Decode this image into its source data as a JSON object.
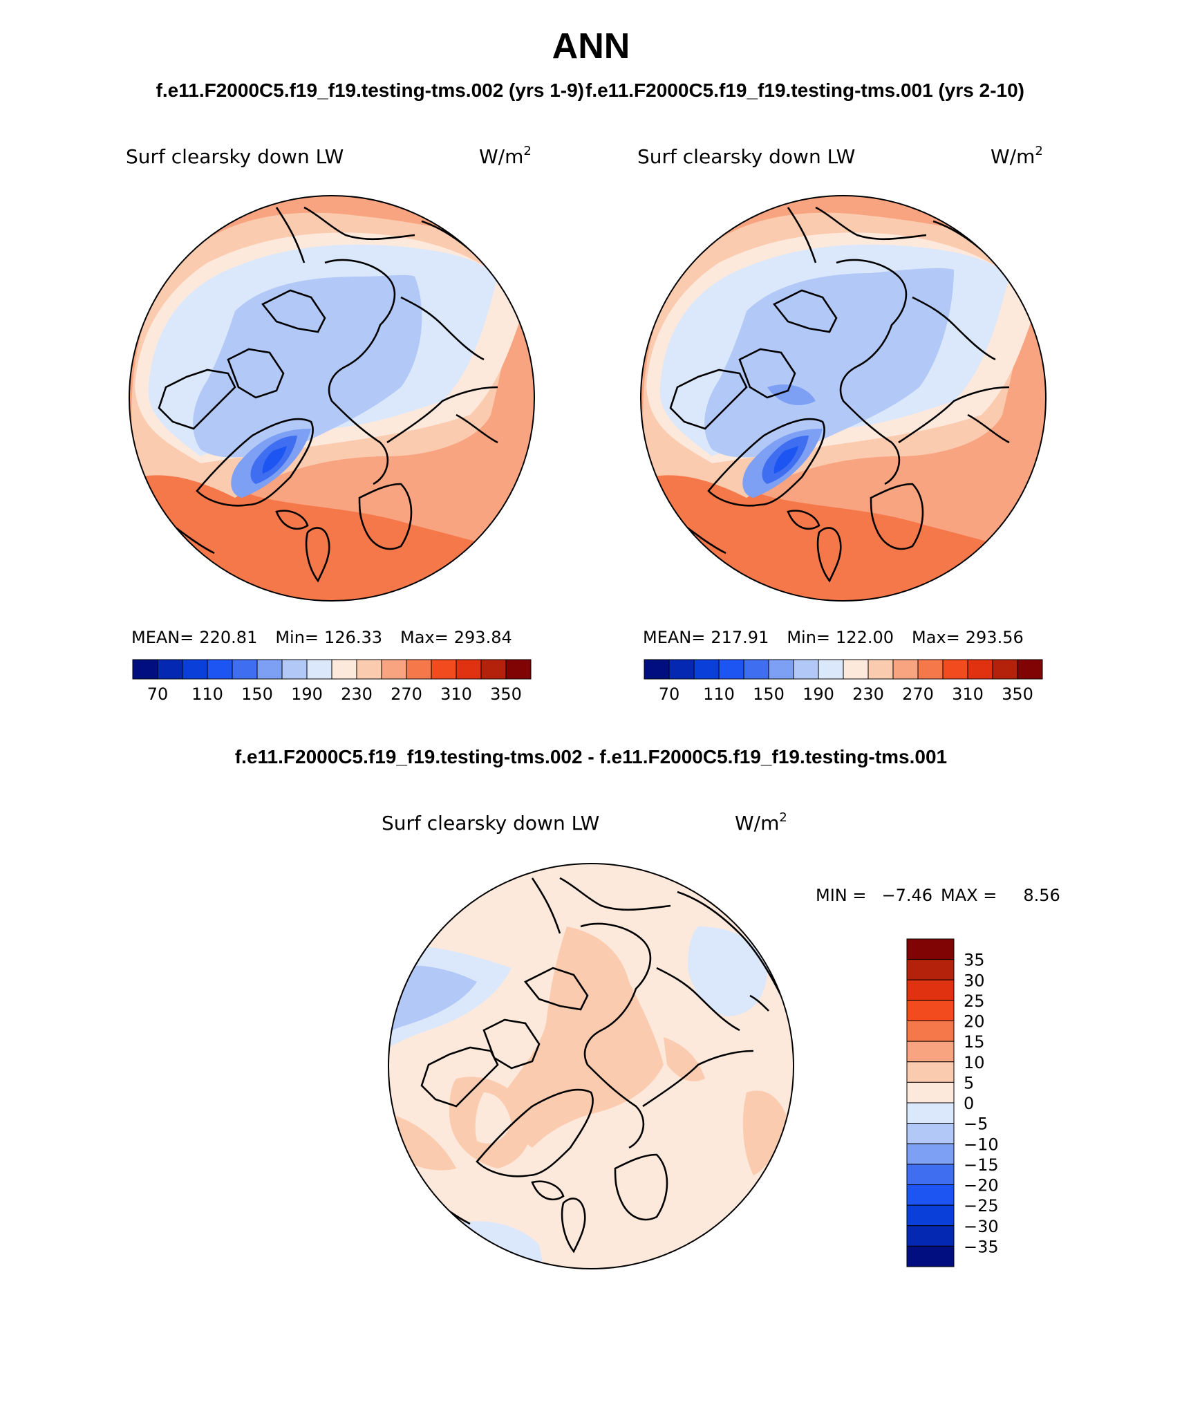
{
  "title": "ANN",
  "case_test": "f.e11.F2000C5.f19_f19.testing-tms.002 (yrs 1-9)",
  "case_ctrl": "f.e11.F2000C5.f19_f19.testing-tms.001 (yrs 2-10)",
  "diff_title": "f.e11.F2000C5.f19_f19.testing-tms.002 - f.e11.F2000C5.f19_f19.testing-tms.001",
  "colors": {
    "abs": [
      "#000e80",
      "#0528b3",
      "#0a3fd9",
      "#1d55f2",
      "#3f6ef0",
      "#7d9ff4",
      "#b2c8f7",
      "#dbe8fb",
      "#fde9dc",
      "#fbcbb0",
      "#f8a480",
      "#f5784b",
      "#f24b1e",
      "#e03110",
      "#b4220c",
      "#800404"
    ],
    "diff": [
      "#000e80",
      "#0528b3",
      "#0a3fd9",
      "#1d55f2",
      "#3f6ef0",
      "#7d9ff4",
      "#b2c8f7",
      "#dbe8fb",
      "#fde9dc",
      "#fbcbb0",
      "#f8a480",
      "#f5784b",
      "#f24b1e",
      "#e03110",
      "#b4220c",
      "#800404"
    ]
  },
  "chart_data": [
    {
      "type": "heatmap",
      "projection": "north polar stereographic",
      "variable": "Surf clearsky down LW",
      "units": "W/m",
      "units_sup": "2",
      "stats": {
        "mean_label": "MEAN=",
        "mean": "220.81",
        "min_label": "Min=",
        "min": "126.33",
        "max_label": "Max=",
        "max": "293.84"
      },
      "levels": [
        70,
        90,
        110,
        130,
        150,
        170,
        190,
        210,
        230,
        250,
        270,
        290,
        310,
        330,
        350
      ],
      "tick_labels": [
        "70",
        "110",
        "150",
        "190",
        "230",
        "270",
        "310",
        "350"
      ]
    },
    {
      "type": "heatmap",
      "projection": "north polar stereographic",
      "variable": "Surf clearsky down LW",
      "units": "W/m",
      "units_sup": "2",
      "stats": {
        "mean_label": "MEAN=",
        "mean": "217.91",
        "min_label": "Min=",
        "min": "122.00",
        "max_label": "Max=",
        "max": "293.56"
      },
      "levels": [
        70,
        90,
        110,
        130,
        150,
        170,
        190,
        210,
        230,
        250,
        270,
        290,
        310,
        330,
        350
      ],
      "tick_labels": [
        "70",
        "110",
        "150",
        "190",
        "230",
        "270",
        "310",
        "350"
      ]
    },
    {
      "type": "heatmap",
      "projection": "north polar stereographic",
      "variable": "Surf clearsky down LW",
      "units": "W/m",
      "units_sup": "2",
      "stats": {
        "min_label": "MIN =",
        "min": "−7.46",
        "max_label": "MAX =",
        "max": "8.56"
      },
      "levels": [
        -35,
        -30,
        -25,
        -20,
        -15,
        -10,
        -5,
        0,
        5,
        10,
        15,
        20,
        25,
        30,
        35
      ],
      "tick_labels": [
        "35",
        "30",
        "25",
        "20",
        "15",
        "10",
        "5",
        "0",
        "−5",
        "−10",
        "−15",
        "−20",
        "−25",
        "−30",
        "−35"
      ]
    }
  ]
}
